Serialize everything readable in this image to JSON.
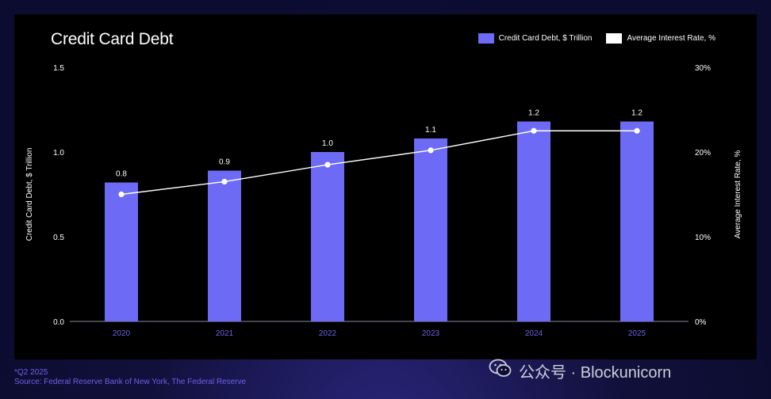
{
  "colors": {
    "bar": "#6d6bf5",
    "line": "#ffffff",
    "tick_x": "#6b62e6",
    "axis_text": "#ffffff",
    "footnote": "#6b62e6",
    "panel": "#000000"
  },
  "chart_data": {
    "type": "bar",
    "title": "Credit Card Debt",
    "categories": [
      "2020",
      "2021",
      "2022",
      "2023",
      "2024",
      "2025"
    ],
    "series": [
      {
        "name": "Credit Card Debt, $ Trillion",
        "type": "bar",
        "axis": "left",
        "values": [
          0.82,
          0.89,
          1.0,
          1.08,
          1.18,
          1.18
        ],
        "data_labels": [
          "0.8",
          "0.9",
          "1.0",
          "1.1",
          "1.2",
          "1.2"
        ]
      },
      {
        "name": "Average Interest Rate, %",
        "type": "line",
        "axis": "right",
        "values": [
          15,
          16.5,
          18.5,
          20.2,
          22.5,
          22.5
        ]
      }
    ],
    "ylabel": "Credit Card Debt, $ Trillion",
    "y2label": "Average Interest Rate, %",
    "ylim": [
      0,
      1.5
    ],
    "y2lim": [
      0,
      30
    ],
    "yticks": [
      "0.0",
      "0.5",
      "1.0",
      "1.5"
    ],
    "y2ticks": [
      "0%",
      "10%",
      "20%",
      "30%"
    ],
    "legend_position": "top-right",
    "grid": false
  },
  "footnote": {
    "line1": "*Q2 2025",
    "line2": "Source: Federal Reserve Bank of New York, The Federal Reserve"
  },
  "watermark": {
    "icon": "wechat-icon",
    "text": "公众号 · Blockunicorn"
  }
}
